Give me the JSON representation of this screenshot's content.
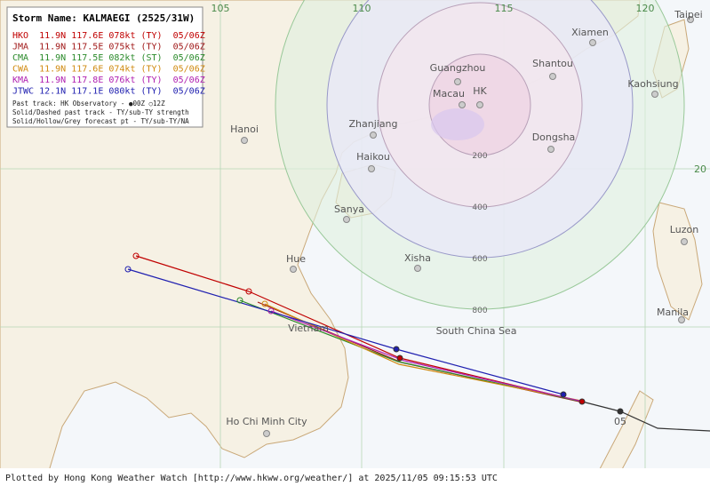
{
  "legend": {
    "title": "Storm Name: KALMAEGI (2525/31W)",
    "agencies": [
      {
        "text": "HKO  11.9N 117.6E 078kt (TY)  05/06Z",
        "color": "#c00000"
      },
      {
        "text": "JMA  11.9N 117.5E 075kt (TY)  05/06Z",
        "color": "#a01818"
      },
      {
        "text": "CMA  11.9N 117.5E 082kt (ST)  05/06Z",
        "color": "#2a8a2a"
      },
      {
        "text": "CWA  11.9N 117.6E 074kt (TY)  05/06Z",
        "color": "#d08a10"
      },
      {
        "text": "KMA  11.9N 117.8E 076kt (TY)  05/06Z",
        "color": "#b020b0"
      },
      {
        "text": "JTWC 12.1N 117.1E 080kt (TY)  05/06Z",
        "color": "#2020b0"
      }
    ],
    "notes": [
      "Past track: HK Observatory - ●00Z ○12Z",
      "Solid/Dashed past track - TY/sub-TY strength",
      "Solid/Hollow/Grey forecast pt - TY/sub-TY/NA"
    ]
  },
  "grid": {
    "lon": [
      "105",
      "110",
      "115",
      "120"
    ],
    "lat": [
      "20"
    ]
  },
  "rings": [
    "200",
    "400",
    "600",
    "800"
  ],
  "places": [
    "Taipei",
    "Xiamen",
    "Guangzhou",
    "Shantou",
    "Kaohsiung",
    "Macau",
    "HK",
    "Hanoi",
    "Zhanjiang",
    "Dongsha",
    "Haikou",
    "Sanya",
    "Luzon",
    "Hue",
    "Xisha",
    "Manila",
    "Vietnam",
    "Ho Chi Minh City"
  ],
  "sea": "South China Sea",
  "time_label": "05",
  "footer": "Plotted by Hong Kong Weather Watch [http://www.hkww.org/weather/] at 2025/11/05 09:15:53 UTC"
}
